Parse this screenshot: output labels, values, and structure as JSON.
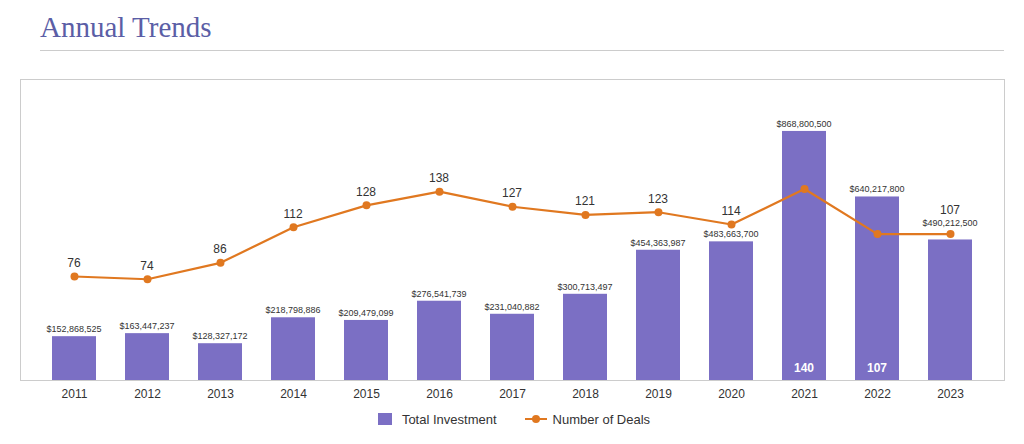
{
  "chart_data": {
    "type": "bar",
    "title": "Annual Trends",
    "categories": [
      "2011",
      "2012",
      "2013",
      "2014",
      "2015",
      "2016",
      "2017",
      "2018",
      "2019",
      "2020",
      "2021",
      "2022",
      "2023"
    ],
    "series": [
      {
        "name": "Total Investment",
        "type": "bar",
        "color": "#7B6FC4",
        "values": [
          152868525,
          163447237,
          128327172,
          218798886,
          209479099,
          276541739,
          231040882,
          300713497,
          454363987,
          483663700,
          868800500,
          640217800,
          490212500
        ],
        "value_labels": [
          "$152,868,525",
          "$163,447,237",
          "$128,327,172",
          "$218,798,886",
          "$209,479,099",
          "$276,541,739",
          "$231,040,882",
          "$300,713,497",
          "$454,363,987",
          "$483,663,700",
          "$868,800,500",
          "$640,217,800",
          "$490,212,500"
        ]
      },
      {
        "name": "Number of Deals",
        "type": "line",
        "axis": "y2",
        "color": "#E07820",
        "marker": "circle",
        "values": [
          76,
          74,
          86,
          112,
          128,
          138,
          127,
          121,
          123,
          114,
          140,
          107,
          107
        ]
      }
    ],
    "ylim": [
      0,
      1050000000
    ],
    "y2lim": [
      0,
      220
    ],
    "data_labels": true,
    "tick_labels": "x",
    "legend": "bottom",
    "grid": false
  }
}
